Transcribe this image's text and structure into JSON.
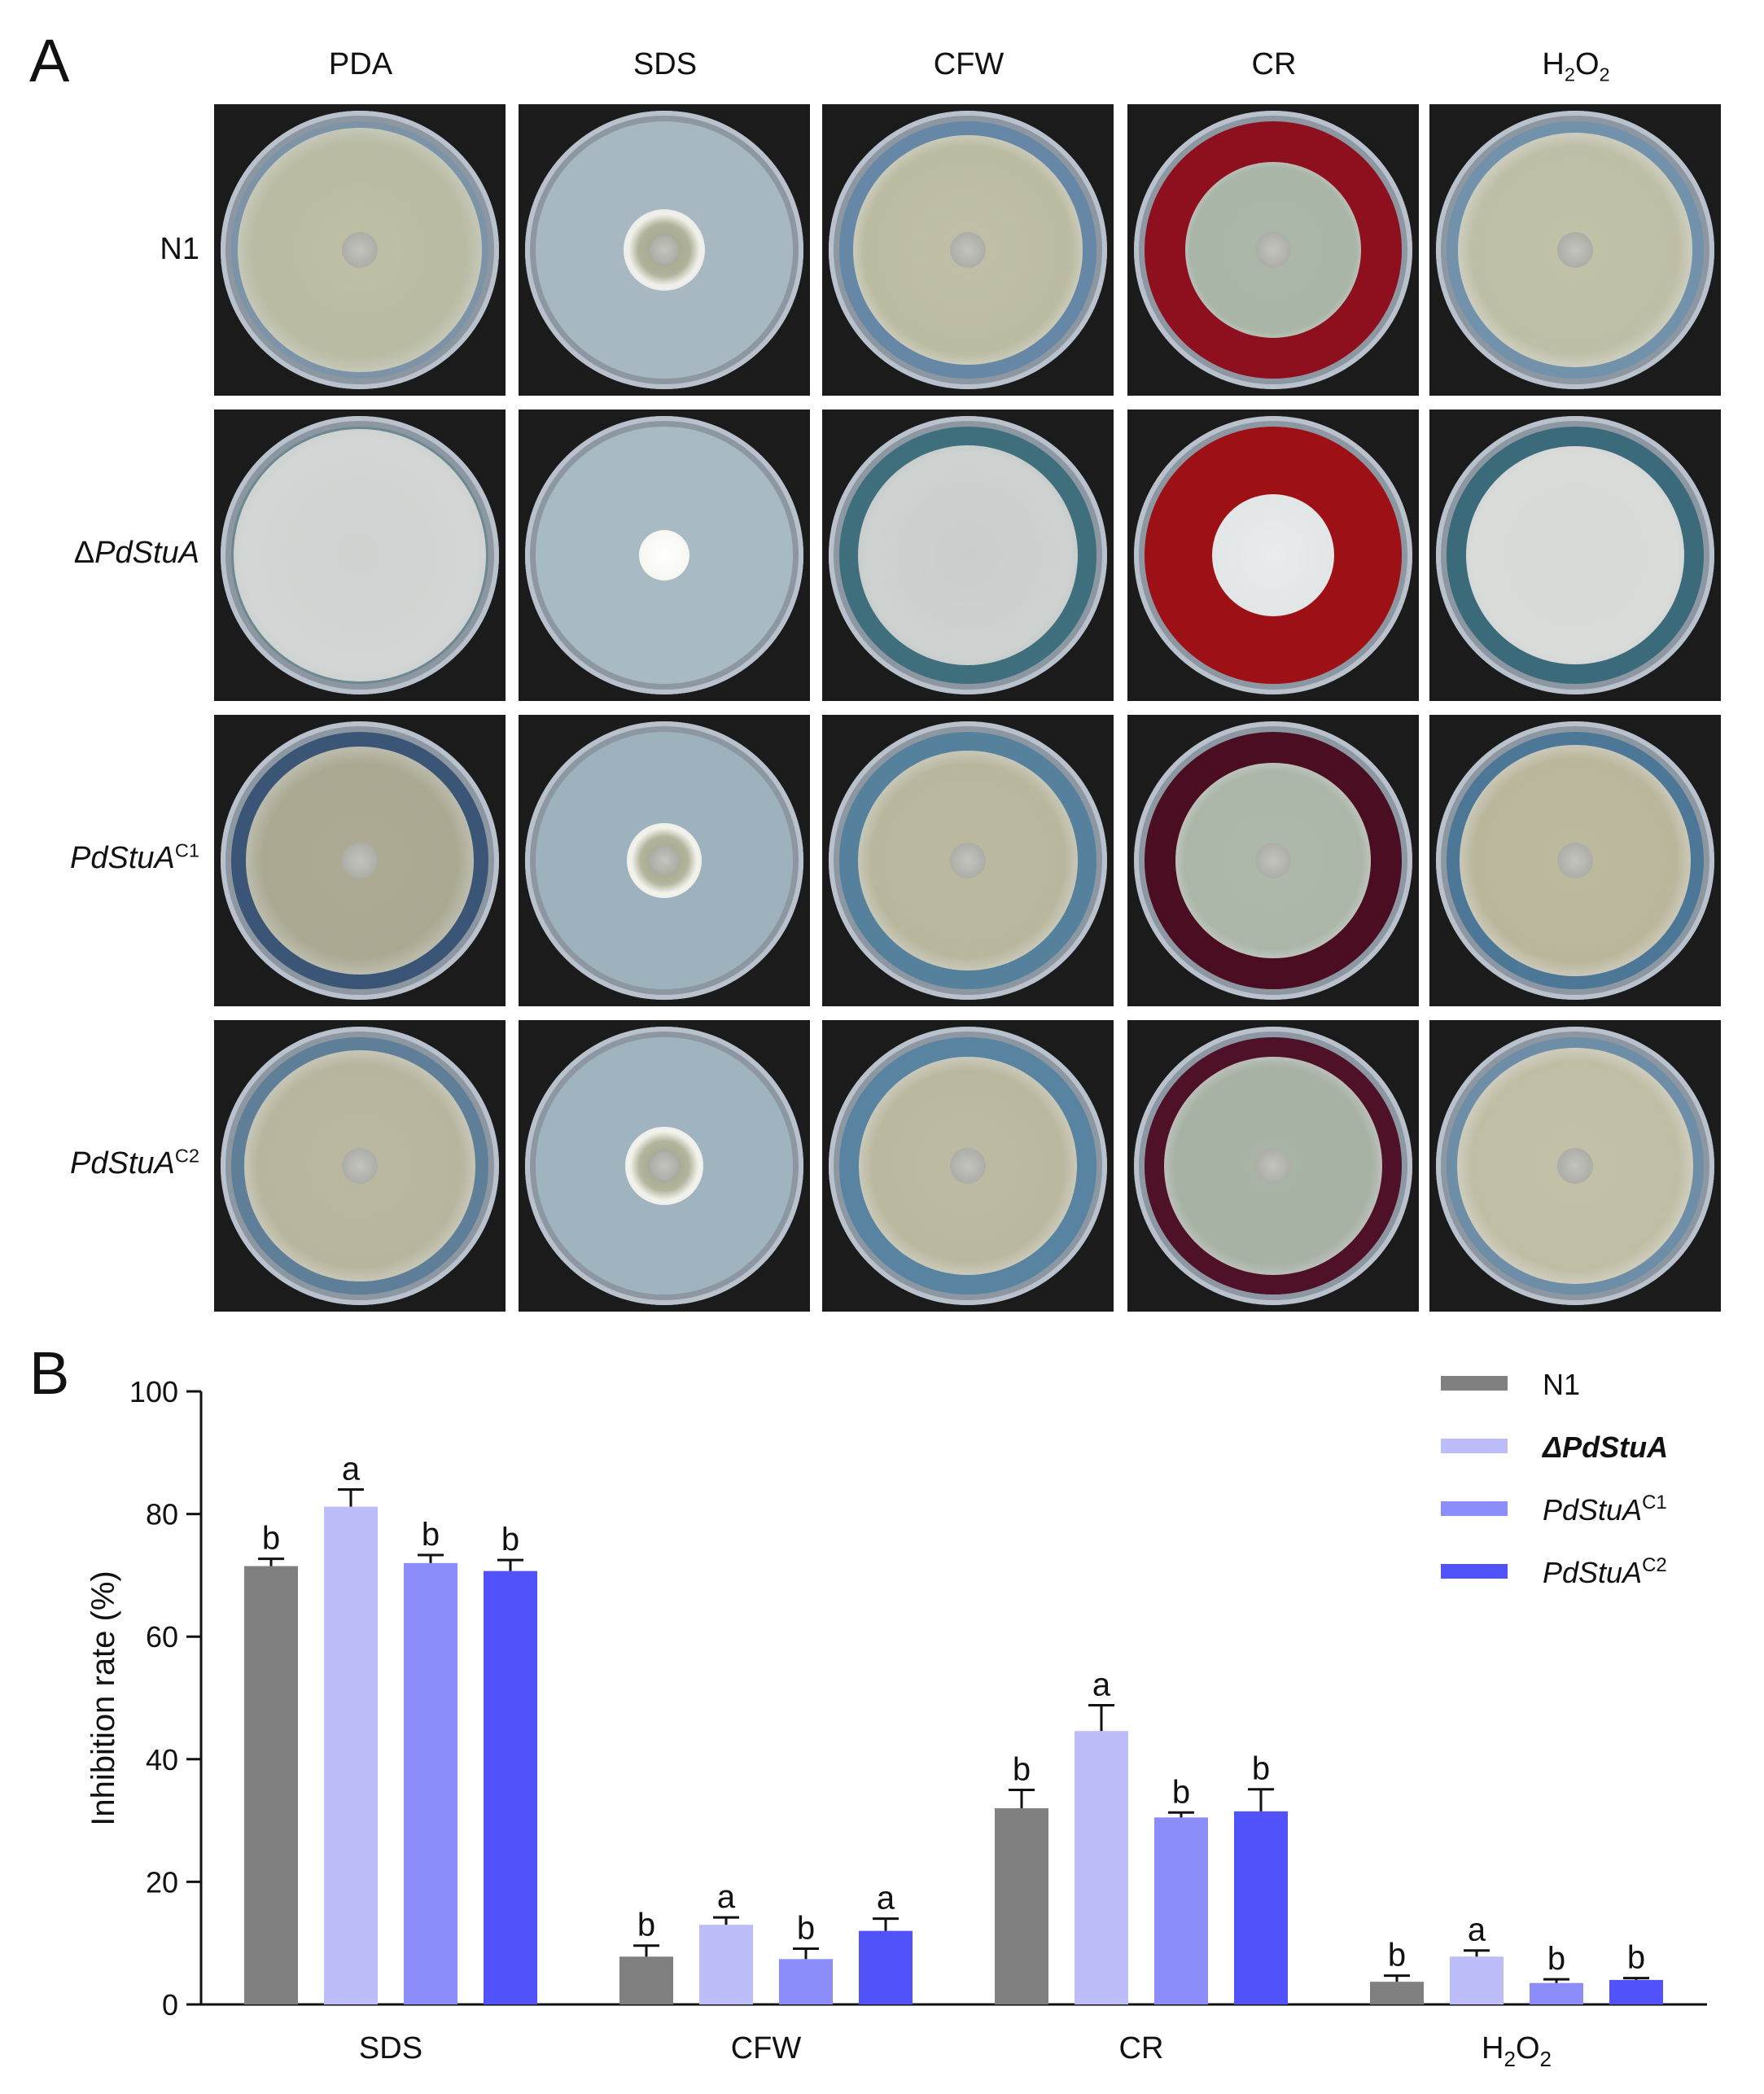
{
  "panel_a": {
    "letter": "A",
    "columns": [
      "PDA",
      "SDS",
      "CFW",
      "CR"
    ],
    "column_h2o2": {
      "base": "H",
      "sub1": "2",
      "mid": "O",
      "sub2": "2"
    },
    "rows": [
      {
        "name": "N1"
      },
      {
        "prefix": "Δ",
        "name": "PdStuA"
      },
      {
        "name": "PdStuA",
        "sup": "C1"
      },
      {
        "name": "PdStuA",
        "sup": "C2"
      }
    ]
  },
  "panel_b": {
    "letter": "B"
  },
  "chart_data": {
    "type": "bar",
    "categories": [
      "SDS",
      "CFW",
      "CR",
      "H2O2"
    ],
    "series": [
      {
        "name": "N1",
        "values": [
          71.5,
          7.8,
          32.0,
          3.7
        ],
        "errors": [
          1.2,
          1.8,
          3.0,
          1.0
        ],
        "letters": [
          "b",
          "b",
          "b",
          "b"
        ]
      },
      {
        "name": "ΔPdStuA",
        "values": [
          81.2,
          13.0,
          44.6,
          7.8
        ],
        "errors": [
          2.8,
          1.2,
          4.2,
          1.0
        ],
        "letters": [
          "a",
          "a",
          "a",
          "a"
        ]
      },
      {
        "name": "PdStuAC1",
        "values": [
          72.0,
          7.4,
          30.5,
          3.5
        ],
        "errors": [
          1.3,
          1.7,
          0.8,
          0.6
        ],
        "letters": [
          "b",
          "b",
          "b",
          "b"
        ]
      },
      {
        "name": "PdStuAC2",
        "values": [
          70.7,
          12.0,
          31.5,
          4.0
        ],
        "errors": [
          1.8,
          2.0,
          3.6,
          0.3
        ],
        "letters": [
          "b",
          "a",
          "b",
          "b"
        ]
      }
    ],
    "ylabel": "Inhibition rate (%)",
    "ylim": [
      0,
      100
    ],
    "yticks": [
      "0",
      "20",
      "40",
      "60",
      "80",
      "100"
    ],
    "xticks": [
      "SDS",
      "CFW",
      "CR"
    ],
    "xtick_h2o2": {
      "base": "H",
      "sub1": "2",
      "mid": "O",
      "sub2": "2"
    },
    "legend": [
      {
        "name": "N1"
      },
      {
        "prefix": "Δ",
        "name": "PdStuA"
      },
      {
        "name": "PdStuA",
        "sup": "C1"
      },
      {
        "name": "PdStuA",
        "sup": "C2"
      }
    ],
    "legend_position": "top-right",
    "colors": [
      "#808080",
      "#bdbdfa",
      "#8c8cfb",
      "#5252fb"
    ],
    "grid": false
  }
}
